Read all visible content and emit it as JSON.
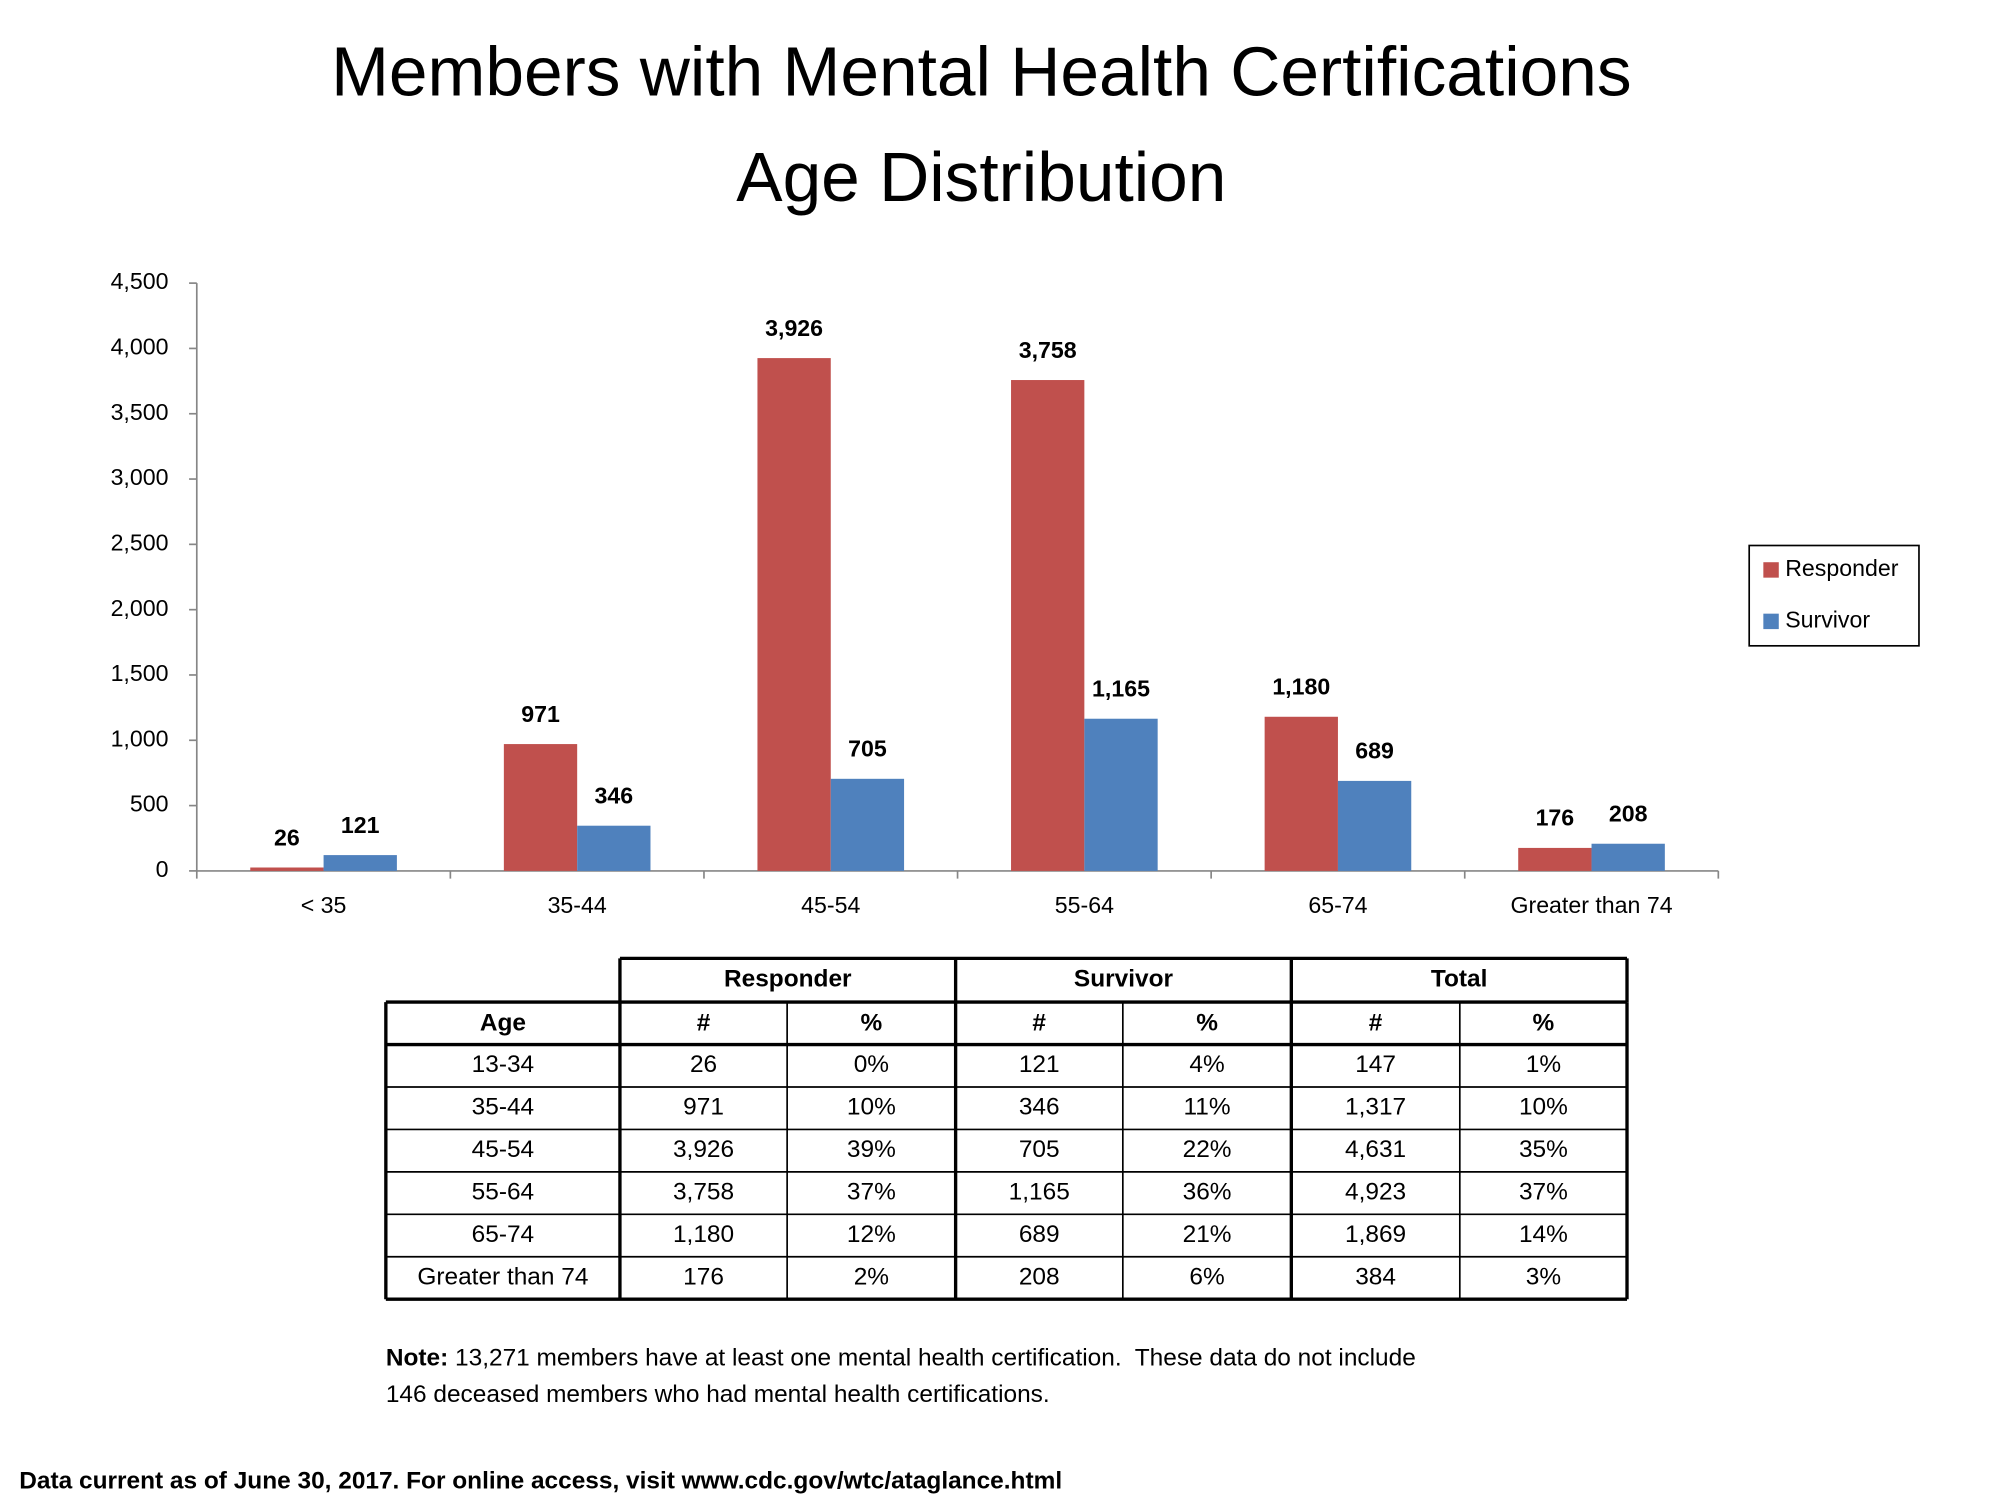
{
  "chart_data": {
    "type": "bar",
    "title": "Members with Mental Health Certifications",
    "subtitle": "Age Distribution",
    "categories": [
      "< 35",
      "35-44",
      "45-54",
      "55-64",
      "65-74",
      "Greater than 74"
    ],
    "series": [
      {
        "name": "Responder",
        "color": "#c0504d",
        "values": [
          26,
          971,
          3926,
          3758,
          1180,
          176
        ],
        "value_labels": [
          "26",
          "971",
          "3,926",
          "3,758",
          "1,180",
          "176"
        ]
      },
      {
        "name": "Survivor",
        "color": "#4f81bd",
        "values": [
          121,
          346,
          705,
          1165,
          689,
          208
        ],
        "value_labels": [
          "121",
          "346",
          "705",
          "1,165",
          "689",
          "208"
        ]
      }
    ],
    "ylim": [
      0,
      4500
    ],
    "yticks": [
      0,
      500,
      {
        "value": 1000,
        "label": "1,000"
      },
      {
        "value": 1500,
        "label": "1,500"
      },
      {
        "value": 2000,
        "label": "2,000"
      },
      {
        "value": 2500,
        "label": "2,500"
      },
      {
        "value": 3000,
        "label": "3,000"
      },
      {
        "value": 3500,
        "label": "3,500"
      },
      {
        "value": 4000,
        "label": "4,000"
      },
      {
        "value": 4500,
        "label": "4,500"
      }
    ],
    "grid": false,
    "legend": "right"
  },
  "table": {
    "groups": [
      "Responder",
      "Survivor",
      "Total"
    ],
    "columns": [
      "Age",
      "#",
      "%",
      "#",
      "%",
      "#",
      "%"
    ],
    "rows": [
      [
        "13-34",
        "26",
        "0%",
        "121",
        "4%",
        "147",
        "1%"
      ],
      [
        "35-44",
        "971",
        "10%",
        "346",
        "11%",
        "1,317",
        "10%"
      ],
      [
        "45-54",
        "3,926",
        "39%",
        "705",
        "22%",
        "4,631",
        "35%"
      ],
      [
        "55-64",
        "3,758",
        "37%",
        "1,165",
        "36%",
        "4,923",
        "37%"
      ],
      [
        "65-74",
        "1,180",
        "12%",
        "689",
        "21%",
        "1,869",
        "14%"
      ],
      [
        "Greater than 74",
        "176",
        "2%",
        "208",
        "6%",
        "384",
        "3%"
      ]
    ]
  },
  "note": {
    "label": "Note:",
    "lines": [
      "13,271 members have at least one mental health certification.  These data do not include",
      "146 deceased members who had mental health certifications."
    ]
  },
  "footer": "Data current as of June 30, 2017. For online access, visit www.cdc.gov/wtc/ataglance.html"
}
